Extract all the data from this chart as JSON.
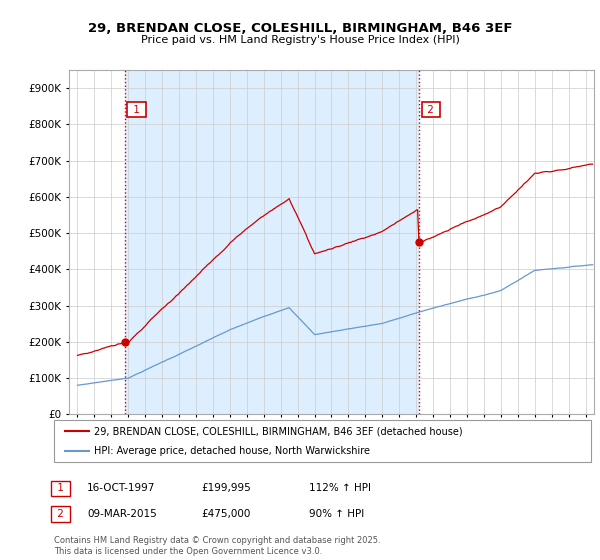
{
  "title": "29, BRENDAN CLOSE, COLESHILL, BIRMINGHAM, B46 3EF",
  "subtitle": "Price paid vs. HM Land Registry's House Price Index (HPI)",
  "property_label": "29, BRENDAN CLOSE, COLESHILL, BIRMINGHAM, B46 3EF (detached house)",
  "hpi_label": "HPI: Average price, detached house, North Warwickshire",
  "footer": "Contains HM Land Registry data © Crown copyright and database right 2025.\nThis data is licensed under the Open Government Licence v3.0.",
  "transaction1_date": "16-OCT-1997",
  "transaction1_price": "£199,995",
  "transaction1_hpi": "112% ↑ HPI",
  "transaction2_date": "09-MAR-2015",
  "transaction2_price": "£475,000",
  "transaction2_hpi": "90% ↑ HPI",
  "marker1_x": 1997.79,
  "marker1_y": 199995,
  "marker2_x": 2015.19,
  "marker2_y": 475000,
  "vline1_x": 1997.79,
  "vline2_x": 2015.19,
  "property_color": "#cc0000",
  "hpi_color": "#6699cc",
  "vline_color": "#cc0000",
  "grid_color": "#cccccc",
  "shade_color": "#ddeeff",
  "background_color": "#ffffff",
  "ylim": [
    0,
    950000
  ],
  "xlim_start": 1994.5,
  "xlim_end": 2025.5
}
